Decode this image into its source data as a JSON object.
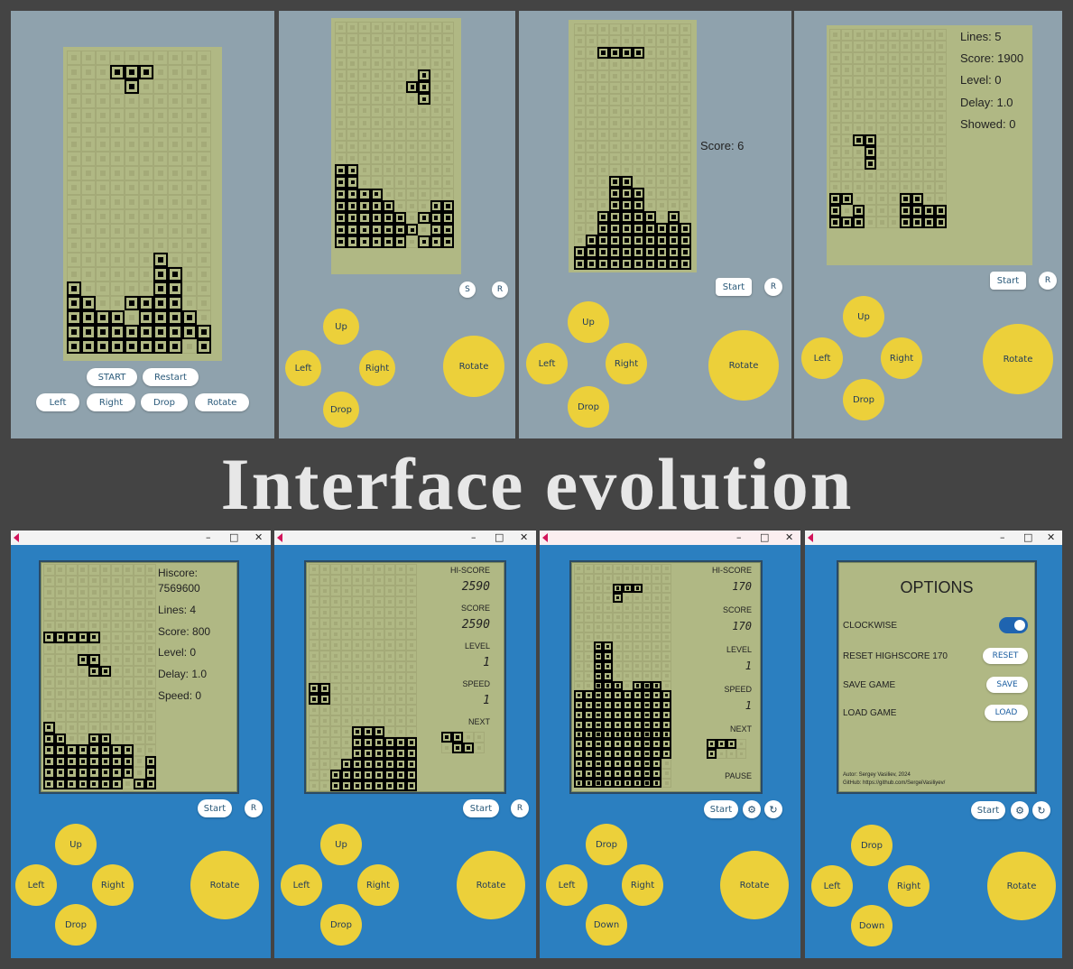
{
  "headline": "Interface evolution",
  "colors": {
    "background": "#444444",
    "old_panel": "#8fa2ad",
    "window": "#2b7fc0",
    "lcd": "#b0b884",
    "button_yellow": "#ecd03a"
  },
  "v1": {
    "buttons": {
      "start": "START",
      "restart": "Restart",
      "left": "Left",
      "right": "Right",
      "drop": "Drop",
      "rotate": "Rotate"
    },
    "board_rows": [
      "..........",
      "...###....",
      "....#.....",
      "..........",
      "..........",
      "..........",
      "..........",
      "..........",
      "..........",
      "..........",
      "..........",
      "..........",
      "..........",
      "..........",
      "......#...",
      "......##..",
      "#.....##..",
      "##..####..",
      "####.####.",
      "##########",
      "########.#"
    ]
  },
  "v2": {
    "buttons": {
      "s": "S",
      "r": "R",
      "up": "Up",
      "left": "Left",
      "right": "Right",
      "drop": "Drop",
      "rotate": "Rotate"
    },
    "board_rows": [
      "..........",
      "..........",
      "..........",
      "..........",
      ".......#..",
      "......##..",
      ".......#..",
      "..........",
      "..........",
      "..........",
      "..........",
      "..........",
      "##........",
      "##........",
      "####......",
      "#####...##",
      "######.###",
      "#######.##",
      "######.###"
    ]
  },
  "v3": {
    "score": "Score: 6",
    "buttons": {
      "start": "Start",
      "r": "R",
      "up": "Up",
      "left": "Left",
      "right": "Right",
      "drop": "Drop",
      "rotate": "Rotate"
    },
    "board_rows": [
      "..........",
      "..........",
      "..####....",
      "..........",
      "..........",
      "..........",
      "..........",
      "..........",
      "..........",
      "..........",
      "..........",
      "..........",
      "..........",
      "...##.....",
      "...###....",
      "...###....",
      "..#####.#.",
      "..########",
      ".#########",
      "##########",
      "##########"
    ]
  },
  "v4": {
    "stats": [
      "Lines: 5",
      "Score: 1900",
      "Level: 0",
      "Delay: 1.0",
      "Showed: 0"
    ],
    "buttons": {
      "start": "Start",
      "r": "R",
      "up": "Up",
      "left": "Left",
      "right": "Right",
      "drop": "Drop",
      "rotate": "Rotate"
    },
    "board_rows": [
      "..........",
      "..........",
      "..........",
      "..........",
      "..........",
      "..........",
      "..........",
      "..........",
      "..........",
      "..##......",
      "...#......",
      "...#......",
      "..........",
      "..........",
      "##....##..",
      "#.#...####",
      "###...####"
    ]
  },
  "v5": {
    "stats": [
      "Hiscore:",
      "7569600",
      "Lines: 4",
      "Score: 800",
      "Level: 0",
      "Delay: 1.0",
      "Speed: 0"
    ],
    "buttons": {
      "start": "Start",
      "r": "R",
      "up": "Up",
      "left": "Left",
      "right": "Right",
      "drop": "Drop",
      "rotate": "Rotate"
    },
    "window_controls": {
      "minimize": "–",
      "maximize": "□",
      "close": "✕"
    },
    "board_rows": [
      "..........",
      "..........",
      "..........",
      "..........",
      "..........",
      "..........",
      "#####.....",
      "..........",
      "...##.....",
      "....##....",
      "..........",
      "..........",
      "..........",
      "..........",
      "#.........",
      "##..##....",
      "########..",
      "########.#",
      "########.#",
      "#######.##"
    ]
  },
  "v6": {
    "labels": {
      "hiscore": "HI-SCORE",
      "hiscore_val": "2590",
      "score": "SCORE",
      "score_val": "2590",
      "level": "LEVEL",
      "level_val": "1",
      "speed": "SPEED",
      "speed_val": "1",
      "next": "NEXT"
    },
    "buttons": {
      "start": "Start",
      "r": "R",
      "up": "Up",
      "left": "Left",
      "right": "Right",
      "drop": "Drop",
      "rotate": "Rotate"
    },
    "window_controls": {
      "minimize": "–",
      "maximize": "□",
      "close": "✕"
    },
    "next_rows": [
      "##..",
      ".##."
    ],
    "board_rows": [
      "..........",
      "..........",
      "..........",
      "..........",
      "..........",
      "..........",
      "..........",
      "..........",
      "..........",
      "..........",
      "..........",
      "##........",
      "##........",
      "..........",
      "..........",
      "....###...",
      "....######",
      "....######",
      "...#######",
      "..########",
      "..########"
    ]
  },
  "v7": {
    "labels": {
      "hiscore": "HI-SCORE",
      "hiscore_val": "170",
      "score": "SCORE",
      "score_val": "170",
      "level": "LEVEL",
      "level_val": "1",
      "speed": "SPEED",
      "speed_val": "1",
      "next": "NEXT",
      "pause": "PAUSE"
    },
    "buttons": {
      "start": "Start",
      "settings": "⚙",
      "reset": "↻",
      "drop": "Drop",
      "left": "Left",
      "right": "Right",
      "down": "Down",
      "rotate": "Rotate"
    },
    "window_controls": {
      "minimize": "–",
      "maximize": "□",
      "close": "✕"
    },
    "next_rows": [
      "###.",
      "#..."
    ],
    "board_rows": [
      "..........",
      "..........",
      "....###...",
      "....#.....",
      "..........",
      "..........",
      "..........",
      "..........",
      "..##......",
      "..##......",
      "..##......",
      "..##......",
      "..###.###.",
      "##########",
      "##########",
      "##########",
      "##########",
      "##########",
      "##########",
      "##########",
      "#########.",
      "#########.",
      "#########."
    ]
  },
  "v8": {
    "title": "OPTIONS",
    "rows": {
      "clockwise": "CLOCKWISE",
      "reset": "RESET HIGHSCORE 170",
      "save": "SAVE GAME",
      "load": "LOAD GAME"
    },
    "buttons_small": {
      "reset": "RESET",
      "save": "SAVE",
      "load": "LOAD"
    },
    "footer": {
      "author": "Autor: Sergey Vasiliev, 2024",
      "github": "GitHub: https://github.com/SergeiVasiliyev/"
    },
    "buttons": {
      "start": "Start",
      "settings": "⚙",
      "reset": "↻",
      "drop": "Drop",
      "left": "Left",
      "right": "Right",
      "down": "Down",
      "rotate": "Rotate"
    },
    "window_controls": {
      "minimize": "–",
      "maximize": "□",
      "close": "✕"
    }
  }
}
